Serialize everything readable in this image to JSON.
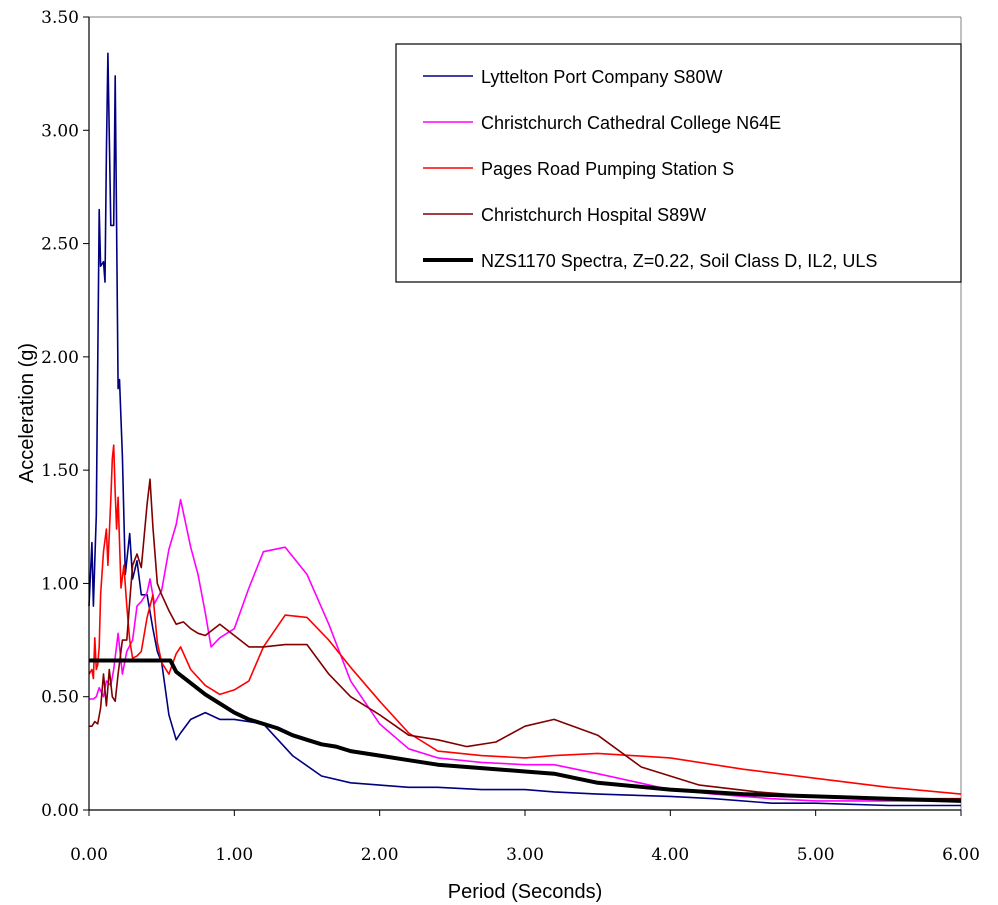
{
  "chart_data": {
    "type": "line",
    "xlabel": "Period (Seconds)",
    "ylabel": "Acceleration (g)",
    "xlim": [
      0,
      6
    ],
    "ylim": [
      0,
      3.5
    ],
    "x_ticks": [
      "0.00",
      "1.00",
      "2.00",
      "3.00",
      "4.00",
      "5.00",
      "6.00"
    ],
    "y_ticks": [
      "0.00",
      "0.50",
      "1.00",
      "1.50",
      "2.00",
      "2.50",
      "3.00",
      "3.50"
    ],
    "grid": false,
    "legend_position": "top-right",
    "series": [
      {
        "name": "Lyttelton Port Company S80W",
        "color": "#000080",
        "x": [
          0.0,
          0.02,
          0.03,
          0.04,
          0.05,
          0.07,
          0.08,
          0.1,
          0.11,
          0.12,
          0.13,
          0.15,
          0.17,
          0.18,
          0.2,
          0.21,
          0.23,
          0.25,
          0.28,
          0.3,
          0.33,
          0.36,
          0.4,
          0.44,
          0.47,
          0.5,
          0.55,
          0.6,
          0.63,
          0.7,
          0.8,
          0.9,
          1.0,
          1.2,
          1.4,
          1.6,
          1.8,
          2.0,
          2.2,
          2.4,
          2.7,
          3.0,
          3.2,
          3.5,
          4.0,
          4.3,
          4.7,
          5.0,
          5.5,
          6.0
        ],
        "y": [
          0.9,
          1.18,
          0.9,
          1.1,
          1.3,
          2.65,
          2.4,
          2.42,
          2.33,
          2.9,
          3.34,
          2.58,
          2.58,
          3.24,
          1.86,
          1.9,
          1.56,
          1.04,
          1.22,
          1.02,
          1.1,
          0.95,
          0.95,
          0.8,
          0.7,
          0.65,
          0.42,
          0.31,
          0.34,
          0.4,
          0.43,
          0.4,
          0.4,
          0.38,
          0.24,
          0.15,
          0.12,
          0.11,
          0.1,
          0.1,
          0.09,
          0.09,
          0.08,
          0.07,
          0.06,
          0.05,
          0.03,
          0.03,
          0.02,
          0.02
        ]
      },
      {
        "name": "Christchurch Cathedral College N64E",
        "color": "#ff00ff",
        "x": [
          0.0,
          0.03,
          0.05,
          0.07,
          0.1,
          0.12,
          0.15,
          0.17,
          0.2,
          0.23,
          0.26,
          0.3,
          0.33,
          0.36,
          0.4,
          0.42,
          0.45,
          0.5,
          0.55,
          0.6,
          0.63,
          0.7,
          0.75,
          0.8,
          0.84,
          0.9,
          1.0,
          1.1,
          1.2,
          1.35,
          1.5,
          1.65,
          1.8,
          2.0,
          2.2,
          2.4,
          2.7,
          3.0,
          3.2,
          3.5,
          4.0,
          4.3,
          4.7,
          5.0,
          5.5,
          6.0
        ],
        "y": [
          0.49,
          0.49,
          0.5,
          0.54,
          0.5,
          0.57,
          0.55,
          0.62,
          0.78,
          0.6,
          0.7,
          0.75,
          0.9,
          0.92,
          0.96,
          1.02,
          0.91,
          0.97,
          1.15,
          1.26,
          1.37,
          1.16,
          1.04,
          0.87,
          0.72,
          0.76,
          0.8,
          0.98,
          1.14,
          1.16,
          1.04,
          0.82,
          0.57,
          0.38,
          0.27,
          0.23,
          0.21,
          0.2,
          0.2,
          0.16,
          0.09,
          0.07,
          0.05,
          0.04,
          0.04,
          0.04
        ]
      },
      {
        "name": "Pages Road Pumping Station S",
        "color": "#ff0000",
        "x": [
          0.0,
          0.02,
          0.03,
          0.04,
          0.05,
          0.06,
          0.07,
          0.08,
          0.1,
          0.12,
          0.13,
          0.15,
          0.16,
          0.17,
          0.18,
          0.19,
          0.2,
          0.22,
          0.24,
          0.26,
          0.28,
          0.3,
          0.33,
          0.36,
          0.4,
          0.44,
          0.47,
          0.5,
          0.55,
          0.6,
          0.63,
          0.7,
          0.8,
          0.9,
          1.0,
          1.1,
          1.2,
          1.35,
          1.5,
          1.65,
          1.8,
          2.0,
          2.2,
          2.4,
          2.7,
          3.0,
          3.2,
          3.5,
          4.0,
          4.5,
          5.0,
          5.5,
          6.0
        ],
        "y": [
          0.6,
          0.62,
          0.58,
          0.76,
          0.62,
          0.64,
          0.72,
          0.95,
          1.14,
          1.24,
          1.08,
          1.37,
          1.55,
          1.61,
          1.4,
          1.24,
          1.38,
          0.98,
          1.08,
          0.9,
          0.75,
          0.67,
          0.68,
          0.7,
          0.85,
          0.95,
          0.74,
          0.65,
          0.6,
          0.69,
          0.72,
          0.62,
          0.55,
          0.51,
          0.53,
          0.57,
          0.72,
          0.86,
          0.85,
          0.75,
          0.63,
          0.48,
          0.34,
          0.26,
          0.24,
          0.23,
          0.24,
          0.25,
          0.23,
          0.18,
          0.14,
          0.1,
          0.07
        ]
      },
      {
        "name": "Christchurch Hospital S89W",
        "color": "#800000",
        "x": [
          0.0,
          0.02,
          0.04,
          0.06,
          0.08,
          0.1,
          0.12,
          0.14,
          0.16,
          0.18,
          0.2,
          0.23,
          0.26,
          0.28,
          0.3,
          0.33,
          0.36,
          0.4,
          0.42,
          0.44,
          0.47,
          0.5,
          0.55,
          0.6,
          0.65,
          0.7,
          0.75,
          0.8,
          0.9,
          1.0,
          1.1,
          1.2,
          1.35,
          1.5,
          1.65,
          1.8,
          2.0,
          2.2,
          2.4,
          2.6,
          2.8,
          3.0,
          3.2,
          3.5,
          3.8,
          4.2,
          4.6,
          5.0,
          5.5,
          6.0
        ],
        "y": [
          0.37,
          0.37,
          0.39,
          0.38,
          0.45,
          0.6,
          0.46,
          0.62,
          0.5,
          0.48,
          0.6,
          0.75,
          0.75,
          0.92,
          1.08,
          1.13,
          1.07,
          1.35,
          1.46,
          1.25,
          1.0,
          0.95,
          0.88,
          0.82,
          0.83,
          0.8,
          0.78,
          0.77,
          0.82,
          0.77,
          0.72,
          0.72,
          0.73,
          0.73,
          0.6,
          0.5,
          0.42,
          0.33,
          0.31,
          0.28,
          0.3,
          0.37,
          0.4,
          0.33,
          0.19,
          0.11,
          0.08,
          0.06,
          0.05,
          0.05
        ]
      },
      {
        "name": "NZS1170 Spectra, Z=0.22,  Soil Class D, IL2, ULS",
        "color": "#000000",
        "x": [
          0.0,
          0.1,
          0.2,
          0.3,
          0.4,
          0.5,
          0.56,
          0.6,
          0.7,
          0.8,
          0.9,
          1.0,
          1.1,
          1.2,
          1.3,
          1.4,
          1.5,
          1.6,
          1.7,
          1.8,
          2.0,
          2.2,
          2.4,
          2.6,
          2.8,
          3.0,
          3.2,
          3.5,
          4.0,
          4.5,
          5.0,
          5.5,
          6.0
        ],
        "y": [
          0.66,
          0.66,
          0.66,
          0.66,
          0.66,
          0.66,
          0.66,
          0.61,
          0.56,
          0.51,
          0.47,
          0.43,
          0.4,
          0.38,
          0.36,
          0.33,
          0.31,
          0.29,
          0.28,
          0.26,
          0.24,
          0.22,
          0.2,
          0.19,
          0.18,
          0.17,
          0.16,
          0.12,
          0.09,
          0.07,
          0.06,
          0.05,
          0.04
        ]
      }
    ]
  }
}
